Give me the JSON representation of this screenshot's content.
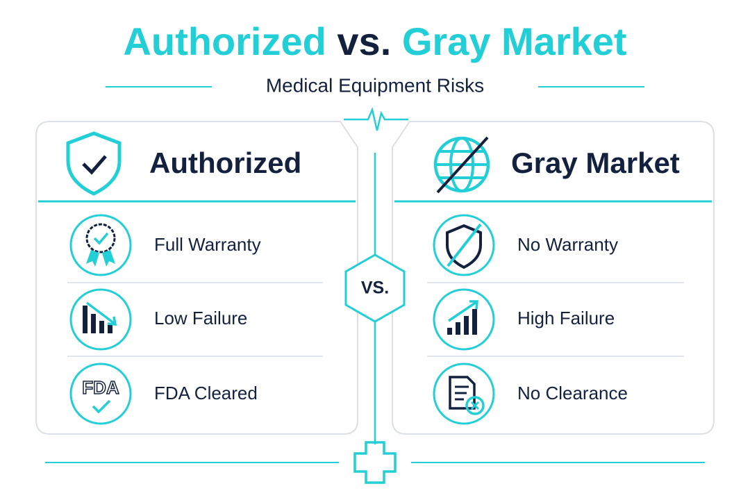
{
  "title": {
    "part1": "Authorized",
    "part2": "vs.",
    "part3": "Gray Market"
  },
  "subtitle": "Medical Equipment Risks",
  "vs_badge": "VS.",
  "fda_icon_text": "FDA",
  "panels": [
    {
      "heading": "Authorized",
      "items": [
        "Full Warranty",
        "Low Failure",
        "FDA Cleared"
      ]
    },
    {
      "heading": "Gray Market",
      "items": [
        "No Warranty",
        "High Failure",
        "No Clearance"
      ]
    }
  ]
}
